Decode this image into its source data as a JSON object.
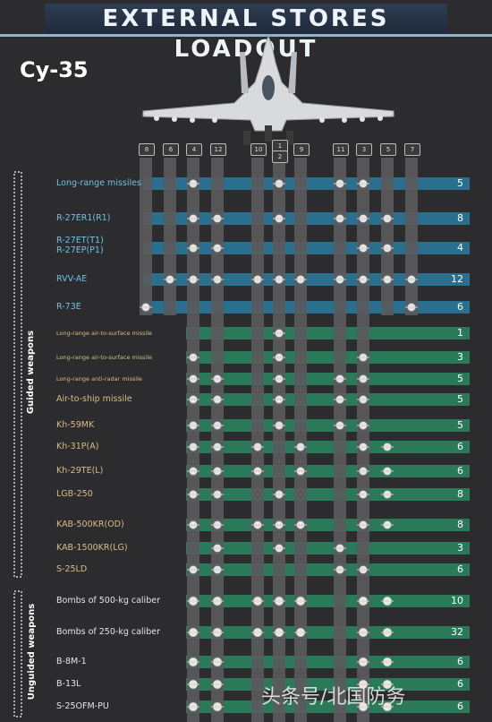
{
  "title": "EXTERNAL STORES LOADOUT",
  "model": "Cy-35",
  "group_labels": {
    "guided": "Guided weapons",
    "unguided": "Unguided weapons"
  },
  "pylons": [
    "8",
    "6",
    "4",
    "12",
    "10",
    "1",
    "2",
    "9",
    "11",
    "3",
    "5",
    "7"
  ],
  "watermark": "头条号/北国防务",
  "colors": {
    "background": "#2c2c2e",
    "air_to_air_row": "#2b6f8e",
    "air_to_ground_row": "#2a7a5a",
    "column": "#5a5a5c",
    "air_label": "#6fc2e6",
    "ground_label": "#d7bd86",
    "unguided_label": "#dfe6ea"
  },
  "weapons": [
    {
      "label": "Long-range missiles",
      "count": "5",
      "category": "air"
    },
    {
      "label": "R-27ER1(R1)",
      "count": "8",
      "category": "air"
    },
    {
      "label": "R-27ET(T1)",
      "label2": "R-27EP(P1)",
      "count": "4",
      "category": "air"
    },
    {
      "label": "RVV-AE",
      "count": "12",
      "category": "air"
    },
    {
      "label": "R-73E",
      "count": "6",
      "category": "air"
    },
    {
      "label": "Long-range air-to-surface missile",
      "count": "1",
      "category": "ground"
    },
    {
      "label": "Long-range air-to-surface missile",
      "count": "3",
      "category": "ground"
    },
    {
      "label": "Long-range anti-radar missile",
      "count": "5",
      "category": "ground"
    },
    {
      "label": "Air-to-ship missile",
      "count": "5",
      "category": "ground"
    },
    {
      "label": "Kh-59MK",
      "count": "5",
      "category": "ground"
    },
    {
      "label": "Kh-31P(A)",
      "count": "6",
      "category": "ground"
    },
    {
      "label": "Kh-29TE(L)",
      "count": "6",
      "category": "ground"
    },
    {
      "label": "LGB-250",
      "count": "8",
      "category": "ground"
    },
    {
      "label": "KAB-500KR(OD)",
      "count": "8",
      "category": "ground"
    },
    {
      "label": "KAB-1500KR(LG)",
      "count": "3",
      "category": "ground"
    },
    {
      "label": "S-25LD",
      "count": "6",
      "category": "ground"
    },
    {
      "label": "Bombs of 500-kg caliber",
      "count": "10",
      "category": "unguided"
    },
    {
      "label": "Bombs of 250-kg caliber",
      "count": "32",
      "category": "unguided"
    },
    {
      "label": "B-8M-1",
      "count": "6",
      "category": "unguided"
    },
    {
      "label": "B-13L",
      "count": "6",
      "category": "unguided"
    },
    {
      "label": "S-25OFM-PU",
      "count": "6",
      "category": "unguided"
    }
  ]
}
